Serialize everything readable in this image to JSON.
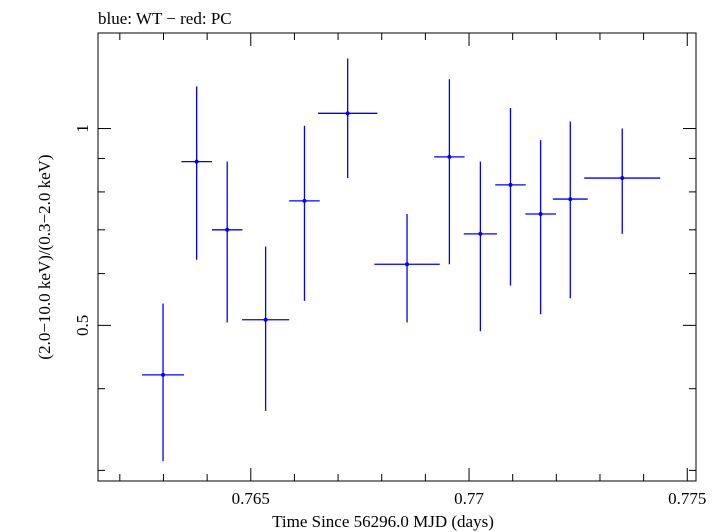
{
  "header": {
    "title": "blue: WT − red: PC"
  },
  "chart_data": {
    "type": "scatter",
    "title": "blue: WT − red: PC",
    "xlabel": "Time Since 56296.0 MJD (days)",
    "ylabel": "(2.0−10.0 keV)/(0.3−2.0 keV)",
    "xlim": [
      0.7615,
      0.7752
    ],
    "ylim": [
      0.289,
      1.4
    ],
    "y_scale": "log",
    "x_ticks": [
      0.765,
      0.77,
      0.775
    ],
    "x_tick_labels": [
      "0.765",
      "0.77",
      "0.775"
    ],
    "y_ticks": [
      0.5,
      1
    ],
    "y_tick_labels": [
      "0.5",
      "1"
    ],
    "grid": false,
    "series": [
      {
        "color": "#0000ff",
        "points": [
          {
            "x": 0.76299,
            "xerr": 0.00048,
            "y": 0.42,
            "ylo": 0.31,
            "yhi": 0.54
          },
          {
            "x": 0.76376,
            "xerr": 0.00035,
            "y": 0.89,
            "ylo": 0.63,
            "yhi": 1.16
          },
          {
            "x": 0.76446,
            "xerr": 0.00035,
            "y": 0.7,
            "ylo": 0.505,
            "yhi": 0.89
          },
          {
            "x": 0.76534,
            "xerr": 0.00054,
            "y": 0.51,
            "ylo": 0.37,
            "yhi": 0.66
          },
          {
            "x": 0.76623,
            "xerr": 0.00035,
            "y": 0.775,
            "ylo": 0.545,
            "yhi": 1.01
          },
          {
            "x": 0.76722,
            "xerr": 0.00068,
            "y": 1.055,
            "ylo": 0.84,
            "yhi": 1.28
          },
          {
            "x": 0.76858,
            "xerr": 0.00075,
            "y": 0.62,
            "ylo": 0.505,
            "yhi": 0.74
          },
          {
            "x": 0.76955,
            "xerr": 0.00035,
            "y": 0.905,
            "ylo": 0.62,
            "yhi": 1.19
          },
          {
            "x": 0.77026,
            "xerr": 0.00038,
            "y": 0.69,
            "ylo": 0.49,
            "yhi": 0.89
          },
          {
            "x": 0.77095,
            "xerr": 0.00035,
            "y": 0.82,
            "ylo": 0.575,
            "yhi": 1.075
          },
          {
            "x": 0.77164,
            "xerr": 0.00035,
            "y": 0.74,
            "ylo": 0.52,
            "yhi": 0.96
          },
          {
            "x": 0.77232,
            "xerr": 0.0004,
            "y": 0.78,
            "ylo": 0.55,
            "yhi": 1.025
          },
          {
            "x": 0.77351,
            "xerr": 0.00087,
            "y": 0.84,
            "ylo": 0.69,
            "yhi": 1.0
          }
        ]
      }
    ]
  }
}
